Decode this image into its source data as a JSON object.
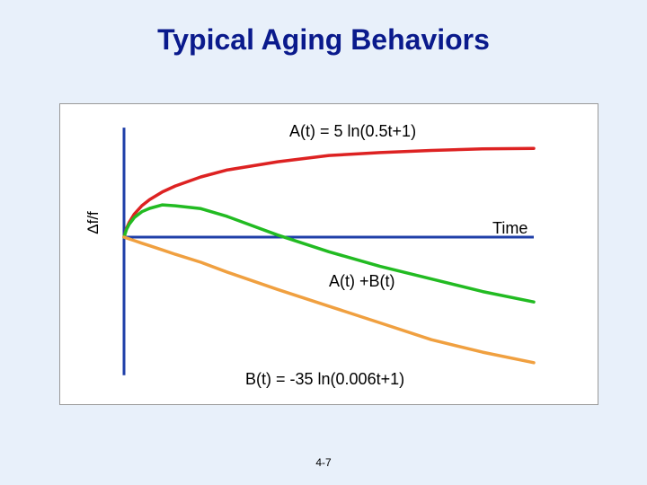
{
  "slide": {
    "title": "Typical Aging Behaviors",
    "page_number": "4-7"
  },
  "chart_data": {
    "type": "line",
    "title": "Typical Aging Behaviors",
    "xlabel": "Time",
    "ylabel": "Δf/f",
    "grid": false,
    "axes_ticks": false,
    "series": [
      {
        "name": "A(t) = 5 ln(0.5t+1)",
        "color": "#dd2222",
        "x": [
          0,
          1,
          2,
          4,
          7,
          10,
          15,
          20,
          30,
          40,
          60,
          80,
          100,
          120,
          140,
          160
        ],
        "y": [
          0,
          2.03,
          3.47,
          5.49,
          7.52,
          8.96,
          10.82,
          12.21,
          14.37,
          16.0,
          18.0,
          19.5,
          20.2,
          20.7,
          21.1,
          21.2
        ]
      },
      {
        "name": "A(t) +B(t)",
        "color": "#22bb22",
        "x": [
          0,
          1,
          2,
          4,
          7,
          10,
          15,
          20,
          30,
          40,
          60,
          80,
          100,
          120,
          140,
          160
        ],
        "y": [
          0,
          1.82,
          3.05,
          4.65,
          6.07,
          6.87,
          7.7,
          7.5,
          6.8,
          5.0,
          0.5,
          -3.5,
          -7.0,
          -10.0,
          -13.0,
          -15.5
        ]
      },
      {
        "name": "B(t) = -35 ln(0.006t+1)",
        "color": "#f0a040",
        "x": [
          0,
          1,
          2,
          4,
          7,
          10,
          15,
          20,
          30,
          40,
          60,
          80,
          100,
          120,
          140,
          160
        ],
        "y": [
          0,
          -0.21,
          -0.42,
          -0.84,
          -1.45,
          -2.06,
          -3.06,
          -4.1,
          -6.0,
          -8.3,
          -12.5,
          -16.5,
          -20.5,
          -24.5,
          -27.5,
          -30.0
        ]
      }
    ],
    "annotations": {
      "a_label": "A(t) = 5 ln(0.5t+1)",
      "sum_label": "A(t) +B(t)",
      "b_label": "B(t) = -35 ln(0.006t+1)"
    },
    "xlim": [
      0,
      160
    ],
    "ylim": [
      -33,
      24
    ]
  }
}
